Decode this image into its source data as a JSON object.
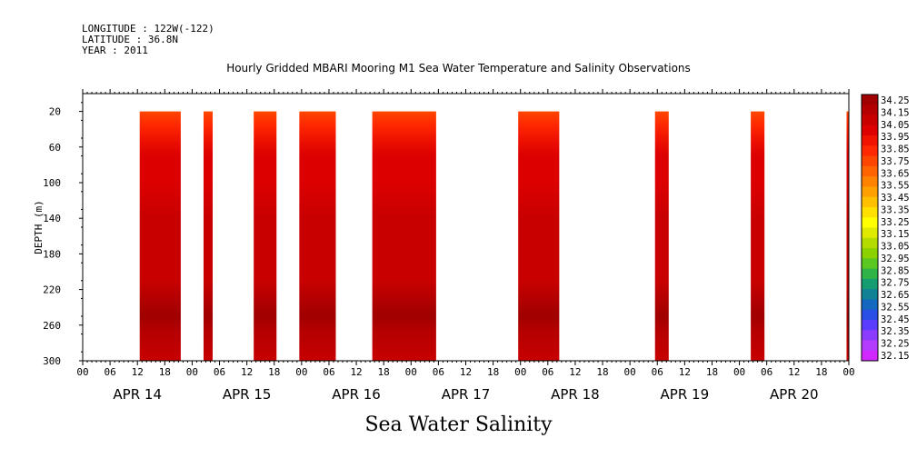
{
  "header": {
    "longitude": "LONGITUDE : 122W(-122)",
    "latitude": "LATITUDE : 36.8N",
    "year": "YEAR : 2011"
  },
  "chart_data": {
    "type": "heatmap",
    "title": "Hourly Gridded MBARI Mooring M1 Sea Water Temperature and Salinity Observations",
    "caption": "Sea Water Salinity",
    "ylabel": "DEPTH (m)",
    "xlabel": "",
    "y_inverted": true,
    "ylim": [
      300,
      0
    ],
    "y_ticks": [
      20,
      60,
      100,
      140,
      180,
      220,
      260,
      300
    ],
    "x_range_hours": [
      0,
      168
    ],
    "x_hour_ticks": [
      "00",
      "06",
      "12",
      "18",
      "00",
      "06",
      "12",
      "18",
      "00",
      "06",
      "12",
      "18",
      "00",
      "06",
      "12",
      "18",
      "00",
      "06",
      "12",
      "18",
      "00",
      "06",
      "12",
      "18",
      "00",
      "06",
      "12",
      "18",
      "00"
    ],
    "x_day_labels": [
      {
        "label": "APR 14",
        "hour": 12
      },
      {
        "label": "APR 15",
        "hour": 36
      },
      {
        "label": "APR 16",
        "hour": 60
      },
      {
        "label": "APR 17",
        "hour": 84
      },
      {
        "label": "APR 18",
        "hour": 108
      },
      {
        "label": "APR 19",
        "hour": 132
      },
      {
        "label": "APR 20",
        "hour": 156
      }
    ],
    "data_blocks_hours": [
      {
        "start": 12.5,
        "end": 21.5
      },
      {
        "start": 26.5,
        "end": 28.5
      },
      {
        "start": 37.5,
        "end": 42.5
      },
      {
        "start": 47.5,
        "end": 55.5
      },
      {
        "start": 63.5,
        "end": 77.5
      },
      {
        "start": 95.5,
        "end": 104.5
      },
      {
        "start": 125.5,
        "end": 128.5
      },
      {
        "start": 146.5,
        "end": 149.5
      },
      {
        "start": 167.5,
        "end": 169.0
      }
    ],
    "depth_profile": [
      {
        "depth": 20,
        "salinity": 33.7
      },
      {
        "depth": 35,
        "salinity": 33.8
      },
      {
        "depth": 50,
        "salinity": 33.9
      },
      {
        "depth": 70,
        "salinity": 33.97
      },
      {
        "depth": 100,
        "salinity": 34.0
      },
      {
        "depth": 140,
        "salinity": 34.02
      },
      {
        "depth": 180,
        "salinity": 34.05
      },
      {
        "depth": 210,
        "salinity": 34.06
      },
      {
        "depth": 230,
        "salinity": 34.1
      },
      {
        "depth": 250,
        "salinity": 34.2
      },
      {
        "depth": 265,
        "salinity": 34.12
      },
      {
        "depth": 300,
        "salinity": 34.08
      }
    ],
    "colorbar": {
      "min": 32.15,
      "max": 34.25,
      "labels": [
        "34.25",
        "34.15",
        "34.05",
        "33.95",
        "33.85",
        "33.75",
        "33.65",
        "33.55",
        "33.45",
        "33.35",
        "33.25",
        "33.15",
        "33.05",
        "32.95",
        "32.85",
        "32.75",
        "32.65",
        "32.55",
        "32.45",
        "32.35",
        "32.25",
        "32.15"
      ],
      "colors": [
        "#a00000",
        "#b40000",
        "#c80000",
        "#dc0000",
        "#f01400",
        "#ff2800",
        "#ff4600",
        "#ff6400",
        "#ff8200",
        "#ffa000",
        "#ffc000",
        "#ffe000",
        "#ffff00",
        "#e0ea00",
        "#b4dc00",
        "#8cd200",
        "#5ac820",
        "#30b448",
        "#159c70",
        "#108296",
        "#1468c0",
        "#2850e6",
        "#5a3cff",
        "#8c3cff",
        "#b43cff",
        "#d028ff"
      ]
    }
  }
}
